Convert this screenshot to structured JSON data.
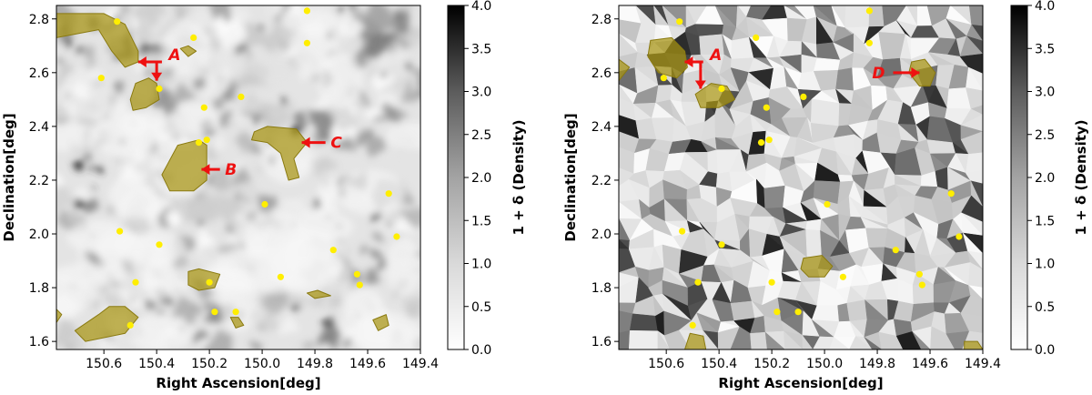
{
  "chart_data": [
    {
      "type": "heatmap",
      "name": "left-panel",
      "style": "smoothed",
      "xlabel": "Right Ascension[deg]",
      "ylabel": "Declination[deg]",
      "xlim": [
        150.78,
        149.4
      ],
      "ylim": [
        1.57,
        2.85
      ],
      "xticks": [
        "150.6",
        "150.4",
        "150.2",
        "150.0",
        "149.8",
        "149.6",
        "149.4"
      ],
      "xtick_values": [
        150.6,
        150.4,
        150.2,
        150.0,
        149.8,
        149.6,
        149.4
      ],
      "yticks": [
        "1.6",
        "1.8",
        "2.0",
        "2.2",
        "2.4",
        "2.6",
        "2.8"
      ],
      "ytick_values": [
        1.6,
        1.8,
        2.0,
        2.2,
        2.4,
        2.6,
        2.8
      ],
      "colorbar": {
        "label": "1 + δ (Density)",
        "range": [
          0.0,
          4.0
        ],
        "ticks": [
          "0.0",
          "0.5",
          "1.0",
          "1.5",
          "2.0",
          "2.5",
          "3.0",
          "3.5",
          "4.0"
        ],
        "cmap": "Greys"
      },
      "points": [
        {
          "ra": 150.55,
          "dec": 2.79
        },
        {
          "ra": 149.83,
          "dec": 2.83
        },
        {
          "ra": 150.26,
          "dec": 2.73
        },
        {
          "ra": 149.83,
          "dec": 2.71
        },
        {
          "ra": 150.61,
          "dec": 2.58
        },
        {
          "ra": 150.39,
          "dec": 2.54
        },
        {
          "ra": 150.08,
          "dec": 2.51
        },
        {
          "ra": 150.22,
          "dec": 2.47
        },
        {
          "ra": 150.24,
          "dec": 2.34
        },
        {
          "ra": 150.21,
          "dec": 2.35
        },
        {
          "ra": 149.52,
          "dec": 2.15
        },
        {
          "ra": 149.99,
          "dec": 2.11
        },
        {
          "ra": 150.54,
          "dec": 2.01
        },
        {
          "ra": 149.49,
          "dec": 1.99
        },
        {
          "ra": 150.39,
          "dec": 1.96
        },
        {
          "ra": 149.73,
          "dec": 1.94
        },
        {
          "ra": 149.93,
          "dec": 1.84
        },
        {
          "ra": 149.64,
          "dec": 1.85
        },
        {
          "ra": 149.63,
          "dec": 1.81
        },
        {
          "ra": 150.48,
          "dec": 1.82
        },
        {
          "ra": 150.2,
          "dec": 1.82
        },
        {
          "ra": 150.18,
          "dec": 1.71
        },
        {
          "ra": 150.1,
          "dec": 1.71
        },
        {
          "ra": 150.5,
          "dec": 1.66
        }
      ],
      "regions": [
        {
          "vertices": [
            [
              150.78,
              2.82
            ],
            [
              150.6,
              2.82
            ],
            [
              150.52,
              2.78
            ],
            [
              150.47,
              2.68
            ],
            [
              150.47,
              2.64
            ],
            [
              150.52,
              2.62
            ],
            [
              150.57,
              2.68
            ],
            [
              150.62,
              2.76
            ],
            [
              150.78,
              2.73
            ]
          ]
        },
        {
          "vertices": [
            [
              150.5,
              2.5
            ],
            [
              150.48,
              2.56
            ],
            [
              150.43,
              2.58
            ],
            [
              150.4,
              2.56
            ],
            [
              150.39,
              2.5
            ],
            [
              150.44,
              2.47
            ],
            [
              150.49,
              2.46
            ]
          ]
        },
        {
          "vertices": [
            [
              150.32,
              2.33
            ],
            [
              150.24,
              2.35
            ],
            [
              150.21,
              2.33
            ],
            [
              150.21,
              2.2
            ],
            [
              150.26,
              2.16
            ],
            [
              150.35,
              2.16
            ],
            [
              150.38,
              2.22
            ]
          ]
        },
        {
          "vertices": [
            [
              150.03,
              2.38
            ],
            [
              149.98,
              2.4
            ],
            [
              149.87,
              2.39
            ],
            [
              149.83,
              2.34
            ],
            [
              149.88,
              2.28
            ],
            [
              149.86,
              2.21
            ],
            [
              149.9,
              2.2
            ],
            [
              149.93,
              2.3
            ],
            [
              149.98,
              2.34
            ],
            [
              150.04,
              2.35
            ]
          ]
        },
        {
          "vertices": [
            [
              150.31,
              2.69
            ],
            [
              150.28,
              2.7
            ],
            [
              150.25,
              2.68
            ],
            [
              150.28,
              2.66
            ]
          ]
        },
        {
          "vertices": [
            [
              150.28,
              1.86
            ],
            [
              150.24,
              1.87
            ],
            [
              150.16,
              1.85
            ],
            [
              150.18,
              1.8
            ],
            [
              150.24,
              1.79
            ],
            [
              150.28,
              1.81
            ]
          ]
        },
        {
          "vertices": [
            [
              150.58,
              1.73
            ],
            [
              150.52,
              1.73
            ],
            [
              150.47,
              1.69
            ],
            [
              150.52,
              1.63
            ],
            [
              150.67,
              1.6
            ],
            [
              150.71,
              1.64
            ],
            [
              150.62,
              1.7
            ]
          ]
        },
        {
          "vertices": [
            [
              150.12,
              1.69
            ],
            [
              150.09,
              1.69
            ],
            [
              150.07,
              1.66
            ],
            [
              150.1,
              1.65
            ]
          ]
        },
        {
          "vertices": [
            [
              149.83,
              1.78
            ],
            [
              149.79,
              1.79
            ],
            [
              149.74,
              1.77
            ],
            [
              149.8,
              1.76
            ]
          ]
        },
        {
          "vertices": [
            [
              149.58,
              1.68
            ],
            [
              149.53,
              1.7
            ],
            [
              149.52,
              1.66
            ],
            [
              149.56,
              1.64
            ]
          ]
        },
        {
          "vertices": [
            [
              150.78,
              1.72
            ],
            [
              150.76,
              1.7
            ],
            [
              150.78,
              1.67
            ]
          ]
        }
      ],
      "annotations": [
        {
          "label": "A",
          "target_ra": 150.47,
          "target_dec": 2.64,
          "tail_ra": 150.38,
          "tail_dec": 2.64,
          "bend": true,
          "target2_ra": 150.4,
          "target2_dec": 2.57
        },
        {
          "label": "B",
          "target_ra": 150.23,
          "target_dec": 2.24,
          "tail_ra": 150.16,
          "tail_dec": 2.24
        },
        {
          "label": "C",
          "target_ra": 149.85,
          "target_dec": 2.34,
          "tail_ra": 149.76,
          "tail_dec": 2.34
        }
      ]
    },
    {
      "type": "heatmap",
      "name": "right-panel",
      "style": "voronoi",
      "xlabel": "Right Ascension[deg]",
      "ylabel": "Declination[deg]",
      "xlim": [
        150.78,
        149.4
      ],
      "ylim": [
        1.57,
        2.85
      ],
      "xticks": [
        "150.6",
        "150.4",
        "150.2",
        "150.0",
        "149.8",
        "149.6",
        "149.4"
      ],
      "xtick_values": [
        150.6,
        150.4,
        150.2,
        150.0,
        149.8,
        149.6,
        149.4
      ],
      "yticks": [
        "1.6",
        "1.8",
        "2.0",
        "2.2",
        "2.4",
        "2.6",
        "2.8"
      ],
      "ytick_values": [
        1.6,
        1.8,
        2.0,
        2.2,
        2.4,
        2.6,
        2.8
      ],
      "colorbar": {
        "label": "1 + δ (Density)",
        "range": [
          0.0,
          4.0
        ],
        "ticks": [
          "0.0",
          "0.5",
          "1.0",
          "1.5",
          "2.0",
          "2.5",
          "3.0",
          "3.5",
          "4.0"
        ],
        "cmap": "Greys"
      },
      "points": [
        {
          "ra": 150.55,
          "dec": 2.79
        },
        {
          "ra": 149.83,
          "dec": 2.83
        },
        {
          "ra": 150.26,
          "dec": 2.73
        },
        {
          "ra": 149.83,
          "dec": 2.71
        },
        {
          "ra": 150.61,
          "dec": 2.58
        },
        {
          "ra": 150.39,
          "dec": 2.54
        },
        {
          "ra": 150.08,
          "dec": 2.51
        },
        {
          "ra": 150.22,
          "dec": 2.47
        },
        {
          "ra": 150.24,
          "dec": 2.34
        },
        {
          "ra": 150.21,
          "dec": 2.35
        },
        {
          "ra": 149.52,
          "dec": 2.15
        },
        {
          "ra": 149.99,
          "dec": 2.11
        },
        {
          "ra": 150.54,
          "dec": 2.01
        },
        {
          "ra": 149.49,
          "dec": 1.99
        },
        {
          "ra": 150.39,
          "dec": 1.96
        },
        {
          "ra": 149.73,
          "dec": 1.94
        },
        {
          "ra": 149.93,
          "dec": 1.84
        },
        {
          "ra": 149.64,
          "dec": 1.85
        },
        {
          "ra": 149.63,
          "dec": 1.81
        },
        {
          "ra": 150.48,
          "dec": 1.82
        },
        {
          "ra": 150.2,
          "dec": 1.82
        },
        {
          "ra": 150.18,
          "dec": 1.71
        },
        {
          "ra": 150.1,
          "dec": 1.71
        },
        {
          "ra": 150.5,
          "dec": 1.66
        }
      ],
      "regions": [
        {
          "vertices": [
            [
              150.66,
              2.72
            ],
            [
              150.58,
              2.73
            ],
            [
              150.53,
              2.68
            ],
            [
              150.52,
              2.62
            ],
            [
              150.56,
              2.58
            ],
            [
              150.63,
              2.6
            ],
            [
              150.67,
              2.66
            ]
          ]
        },
        {
          "vertices": [
            [
              150.49,
              2.52
            ],
            [
              150.43,
              2.56
            ],
            [
              150.37,
              2.55
            ],
            [
              150.34,
              2.5
            ],
            [
              150.4,
              2.47
            ],
            [
              150.47,
              2.47
            ]
          ]
        },
        {
          "vertices": [
            [
              149.67,
              2.64
            ],
            [
              149.62,
              2.65
            ],
            [
              149.58,
              2.6
            ],
            [
              149.6,
              2.55
            ],
            [
              149.64,
              2.55
            ],
            [
              149.68,
              2.6
            ]
          ]
        },
        {
          "vertices": [
            [
              150.08,
              1.91
            ],
            [
              150.01,
              1.92
            ],
            [
              149.97,
              1.88
            ],
            [
              150.0,
              1.84
            ],
            [
              150.06,
              1.84
            ],
            [
              150.09,
              1.87
            ]
          ]
        },
        {
          "vertices": [
            [
              150.78,
              2.65
            ],
            [
              150.74,
              2.62
            ],
            [
              150.78,
              2.57
            ]
          ]
        },
        {
          "vertices": [
            [
              150.51,
              1.63
            ],
            [
              150.46,
              1.62
            ],
            [
              150.45,
              1.57
            ],
            [
              150.53,
              1.57
            ]
          ]
        },
        {
          "vertices": [
            [
              149.47,
              1.6
            ],
            [
              149.42,
              1.6
            ],
            [
              149.4,
              1.57
            ],
            [
              149.47,
              1.57
            ]
          ]
        }
      ],
      "annotations": [
        {
          "label": "A",
          "target_ra": 150.53,
          "target_dec": 2.64,
          "tail_ra": 150.46,
          "tail_dec": 2.64,
          "bend": true,
          "target2_ra": 150.47,
          "target2_dec": 2.54
        },
        {
          "label": "D",
          "target_ra": 149.64,
          "target_dec": 2.6,
          "tail_ra": 149.74,
          "tail_dec": 2.6,
          "label_side": "left"
        }
      ]
    }
  ]
}
